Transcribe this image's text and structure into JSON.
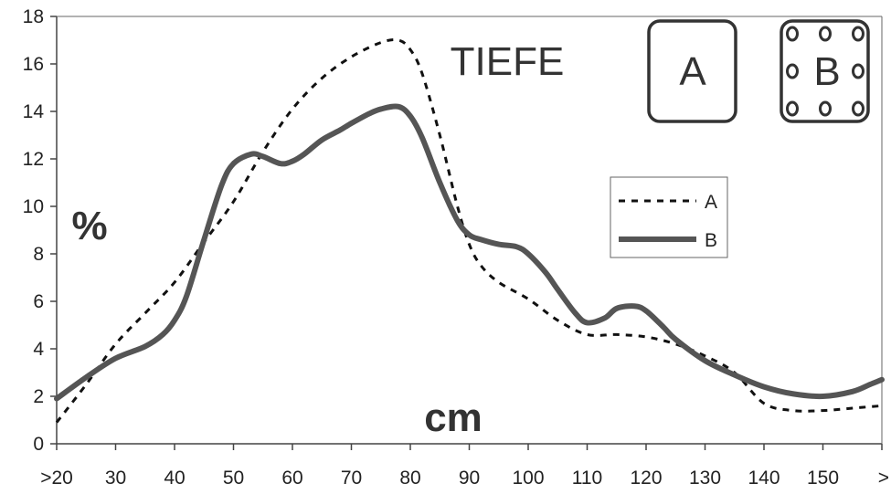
{
  "chart_data": {
    "type": "line",
    "title": "TIEFE",
    "xlabel": "cm",
    "ylabel": "%",
    "x_tick_labels": [
      ">20",
      "30",
      "40",
      "50",
      "60",
      "70",
      "80",
      "90",
      "100",
      "110",
      "120",
      "130",
      "140",
      "150",
      ">"
    ],
    "y_tick_labels": [
      "0",
      "2",
      "4",
      "6",
      "8",
      "10",
      "12",
      "14",
      "16",
      "18"
    ],
    "ylim": [
      0,
      18
    ],
    "xlim": [
      20,
      160
    ],
    "grid": false,
    "legend_position": "center-right",
    "icons": [
      {
        "label": "A",
        "style": "plain-square"
      },
      {
        "label": "B",
        "style": "square-with-dots"
      }
    ],
    "series": [
      {
        "name": "A",
        "style": "dashed",
        "color": "#111111",
        "x": [
          20,
          25,
          30,
          35,
          40,
          45,
          50,
          55,
          60,
          65,
          70,
          75,
          78,
          80,
          82,
          85,
          88,
          90,
          92,
          95,
          100,
          105,
          110,
          115,
          120,
          125,
          130,
          135,
          140,
          145,
          150,
          155,
          160
        ],
        "y": [
          0.9,
          2.5,
          4.2,
          5.5,
          6.8,
          8.5,
          10.2,
          12.3,
          14.1,
          15.4,
          16.3,
          16.9,
          17.0,
          16.6,
          15.6,
          13.0,
          10.0,
          8.4,
          7.5,
          6.8,
          6.1,
          5.2,
          4.6,
          4.6,
          4.5,
          4.2,
          3.7,
          3.0,
          1.7,
          1.4,
          1.4,
          1.5,
          1.6
        ]
      },
      {
        "name": "B",
        "style": "solid",
        "color": "#555555",
        "x": [
          20,
          25,
          30,
          35,
          38,
          40,
          42,
          45,
          48,
          50,
          53,
          55,
          58,
          60,
          62,
          65,
          68,
          70,
          73,
          75,
          78,
          80,
          82,
          85,
          88,
          90,
          92,
          95,
          98,
          100,
          103,
          105,
          108,
          110,
          113,
          115,
          118,
          120,
          123,
          125,
          130,
          135,
          140,
          145,
          150,
          155,
          158,
          160
        ],
        "y": [
          1.9,
          2.8,
          3.6,
          4.1,
          4.6,
          5.2,
          6.2,
          8.6,
          10.9,
          11.8,
          12.2,
          12.1,
          11.8,
          11.9,
          12.2,
          12.8,
          13.2,
          13.5,
          13.9,
          14.1,
          14.2,
          13.8,
          12.9,
          11.0,
          9.4,
          8.8,
          8.6,
          8.4,
          8.3,
          8.0,
          7.2,
          6.5,
          5.5,
          5.1,
          5.3,
          5.7,
          5.8,
          5.6,
          4.9,
          4.4,
          3.5,
          2.9,
          2.4,
          2.1,
          2.0,
          2.2,
          2.5,
          2.7
        ]
      }
    ]
  }
}
